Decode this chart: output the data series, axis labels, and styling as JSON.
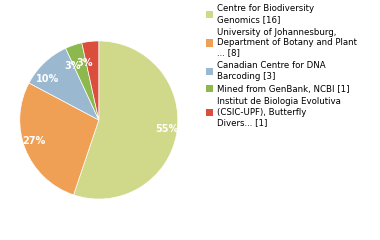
{
  "slices": [
    16,
    8,
    3,
    1,
    1
  ],
  "pct_labels": [
    "55%",
    "27%",
    "10%",
    "3%",
    "3%"
  ],
  "colors": [
    "#d0d98a",
    "#f0a055",
    "#9ab8d0",
    "#8cb84e",
    "#d94f3b"
  ],
  "legend_labels": [
    "Centre for Biodiversity\nGenomics [16]",
    "University of Johannesburg,\nDepartment of Botany and Plant\n... [8]",
    "Canadian Centre for DNA\nBarcoding [3]",
    "Mined from GenBank, NCBI [1]",
    "Institut de Biologia Evolutiva\n(CSIC-UPF), Butterfly\nDivers... [1]"
  ],
  "startangle": 90,
  "label_fontsize": 7.0,
  "legend_fontsize": 6.2,
  "background_color": "#ffffff"
}
